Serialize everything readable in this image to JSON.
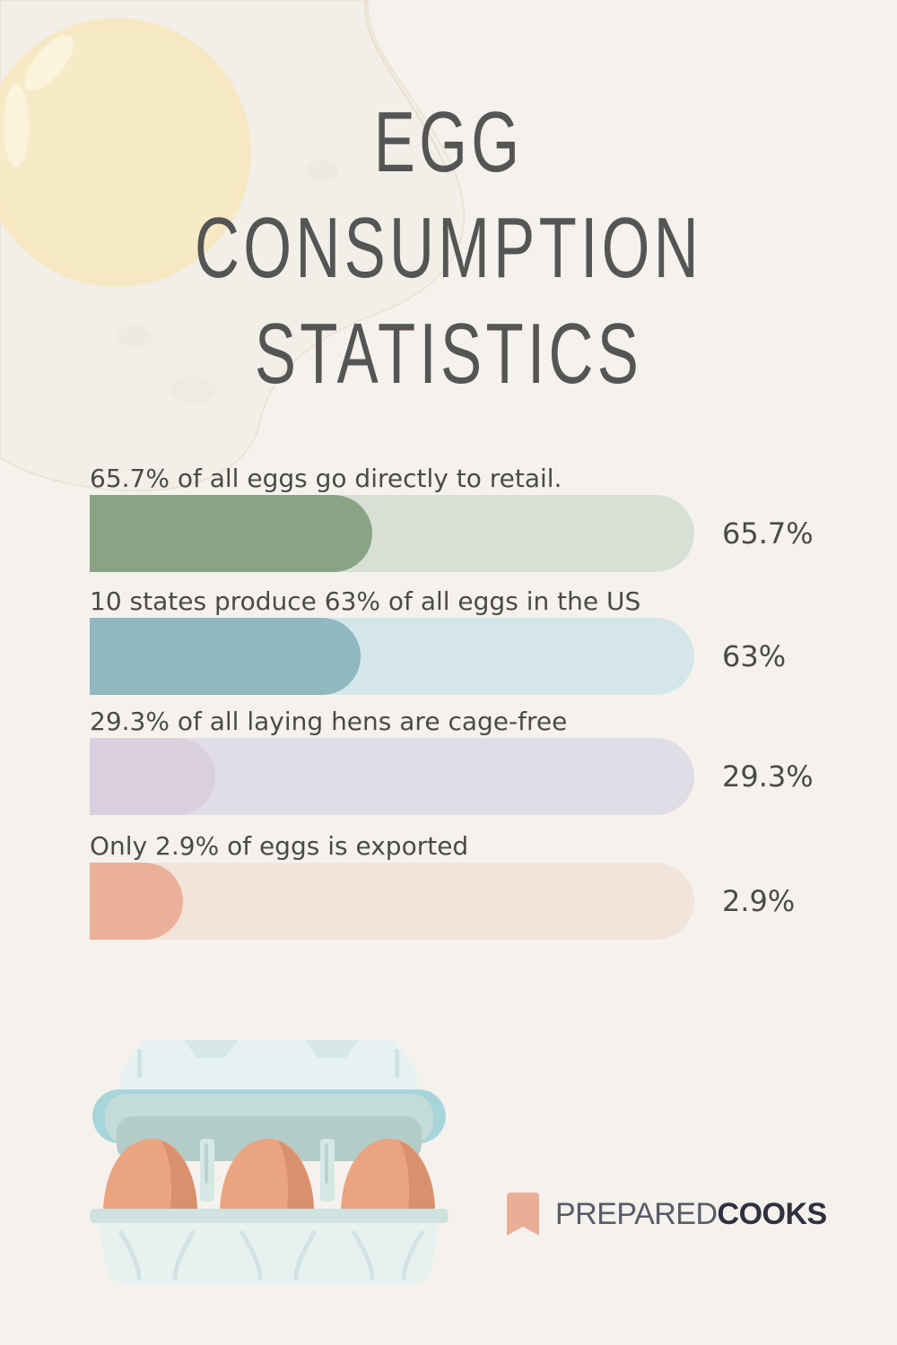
{
  "title": {
    "line1": "EGG",
    "line2": "CONSUMPTION",
    "line3": "STATISTICS"
  },
  "chart_data": {
    "type": "bar",
    "orientation": "horizontal",
    "categories": [
      "65.7% of all eggs go directly to retail.",
      "10 states produce 63% of all eggs in the US",
      "29.3% of all laying hens are cage-free",
      "Only 2.9% of eggs is exported"
    ],
    "values": [
      65.7,
      63,
      29.3,
      2.9
    ],
    "value_labels": [
      "65.7%",
      "63%",
      "29.3%",
      "2.9%"
    ],
    "xlim": [
      0,
      100
    ],
    "grid": false,
    "colors": {
      "fill": [
        "#8ba385",
        "#8fb8c0",
        "#d9cfdf",
        "#ebb09a"
      ],
      "track": [
        "#d8e0d6",
        "#d4e6ea",
        "#e0dde7",
        "#f0e4db"
      ]
    }
  },
  "logo": {
    "text_light": "PREPARED",
    "text_bold": "COOKS",
    "mark_color": "#e8ae98"
  },
  "icons": {
    "background": "fried-egg-icon",
    "carton": "egg-carton-icon",
    "logo": "bookmark-icon"
  }
}
